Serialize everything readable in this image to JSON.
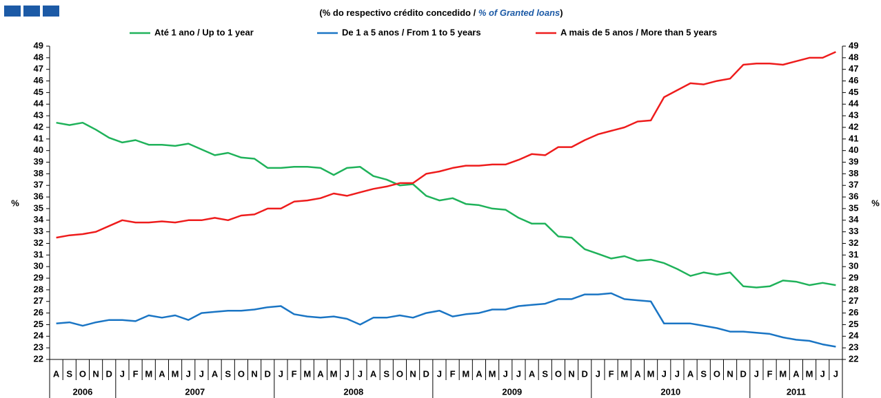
{
  "chart_data": {
    "type": "line",
    "subtitle": [
      "(% do respectivo crédito concedido / ",
      "% of Granted loans",
      ")"
    ],
    "ylabel": "%",
    "y2label": "%",
    "categories": [
      "A",
      "S",
      "O",
      "N",
      "D",
      "J",
      "F",
      "M",
      "A",
      "M",
      "J",
      "J",
      "A",
      "S",
      "O",
      "N",
      "D",
      "J",
      "F",
      "M",
      "A",
      "M",
      "J",
      "J",
      "A",
      "S",
      "O",
      "N",
      "D",
      "J",
      "F",
      "M",
      "A",
      "M",
      "J",
      "J",
      "A",
      "S",
      "O",
      "N",
      "D",
      "J",
      "F",
      "M",
      "A",
      "M",
      "J",
      "J",
      "A",
      "S",
      "O",
      "N",
      "D",
      "J",
      "F",
      "M",
      "A",
      "M",
      "J",
      "J"
    ],
    "years": [
      "2006",
      "2007",
      "2008",
      "2009",
      "2010",
      "2011"
    ],
    "series": [
      {
        "name": "Até 1 ano / Up to 1 year",
        "color": "#1fb25a",
        "values": [
          42.4,
          42.2,
          42.4,
          41.8,
          41.1,
          40.7,
          40.9,
          40.5,
          40.5,
          40.4,
          40.6,
          40.1,
          39.6,
          39.8,
          39.4,
          39.3,
          38.5,
          38.5,
          38.6,
          38.6,
          38.5,
          37.9,
          38.5,
          38.6,
          37.8,
          37.5,
          37.0,
          37.1,
          36.1,
          35.7,
          35.9,
          35.4,
          35.3,
          35.0,
          34.9,
          34.2,
          33.7,
          33.7,
          32.6,
          32.5,
          31.5,
          31.1,
          30.7,
          30.9,
          30.5,
          30.6,
          30.3,
          29.8,
          29.2,
          29.5,
          29.3,
          29.5,
          28.3,
          28.2,
          28.3,
          28.8,
          28.7,
          28.4,
          28.6,
          28.4
        ]
      },
      {
        "name": "De 1 a 5 anos / From 1 to 5 years",
        "color": "#1a75c4",
        "values": [
          25.1,
          25.2,
          24.9,
          25.2,
          25.4,
          25.4,
          25.3,
          25.8,
          25.6,
          25.8,
          25.4,
          26.0,
          26.1,
          26.2,
          26.2,
          26.3,
          26.5,
          26.6,
          25.9,
          25.7,
          25.6,
          25.7,
          25.5,
          25.0,
          25.6,
          25.6,
          25.8,
          25.6,
          26.0,
          26.2,
          25.7,
          25.9,
          26.0,
          26.3,
          26.3,
          26.6,
          26.7,
          26.8,
          27.2,
          27.2,
          27.6,
          27.6,
          27.7,
          27.2,
          27.1,
          27.0,
          25.1,
          25.1,
          25.1,
          24.9,
          24.7,
          24.4,
          24.4,
          24.3,
          24.2,
          23.9,
          23.7,
          23.6,
          23.3,
          23.1
        ]
      },
      {
        "name": "A mais de 5 anos / More than 5 years",
        "color": "#ee1c1c",
        "values": [
          32.5,
          32.7,
          32.8,
          33.0,
          33.5,
          34.0,
          33.8,
          33.8,
          33.9,
          33.8,
          34.0,
          34.0,
          34.2,
          34.0,
          34.4,
          34.5,
          35.0,
          35.0,
          35.6,
          35.7,
          35.9,
          36.3,
          36.1,
          36.4,
          36.7,
          36.9,
          37.2,
          37.2,
          38.0,
          38.2,
          38.5,
          38.7,
          38.7,
          38.8,
          38.8,
          39.2,
          39.7,
          39.6,
          40.3,
          40.3,
          40.9,
          41.4,
          41.7,
          42.0,
          42.5,
          42.6,
          44.6,
          45.2,
          45.8,
          45.7,
          46.0,
          46.2,
          47.4,
          47.5,
          47.5,
          47.4,
          47.7,
          48.0,
          48.0,
          48.5
        ]
      }
    ],
    "ylim": [
      22,
      49
    ],
    "yticks": [
      22,
      23,
      24,
      25,
      26,
      27,
      28,
      29,
      30,
      31,
      32,
      33,
      34,
      35,
      36,
      37,
      38,
      39,
      40,
      41,
      42,
      43,
      44,
      45,
      46,
      47,
      48,
      49
    ],
    "y2lim": [
      22,
      49
    ],
    "y2ticks": [
      22,
      23,
      24,
      25,
      26,
      27,
      28,
      29,
      30,
      31,
      32,
      33,
      34,
      35,
      36,
      37,
      38,
      39,
      40,
      41,
      42,
      43,
      44,
      45,
      46,
      47,
      48,
      49
    ]
  }
}
